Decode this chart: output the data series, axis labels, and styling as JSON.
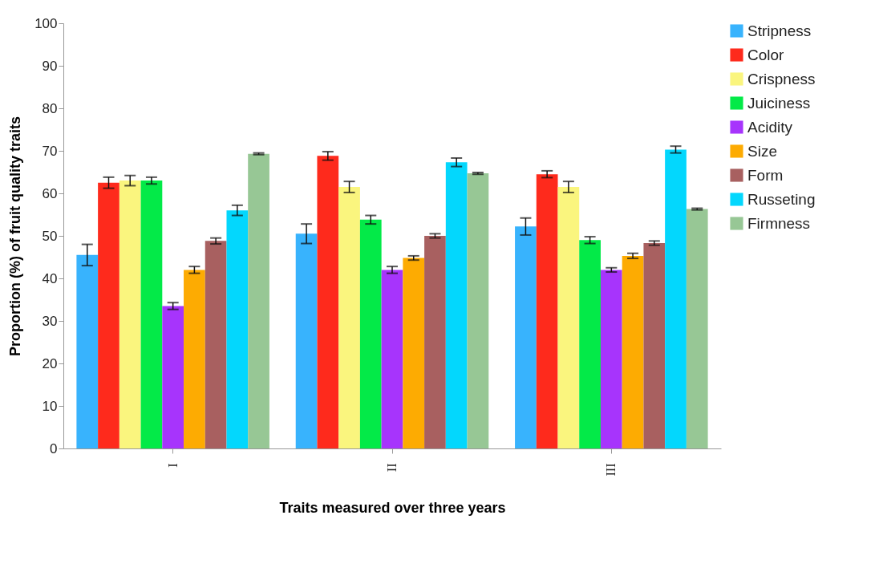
{
  "chart_data": {
    "type": "bar",
    "xlabel": "Traits measured over three years",
    "ylabel": "Proportion (%) of fruit quality traits",
    "categories": [
      "I",
      "II",
      "III"
    ],
    "series": [
      {
        "name": "Stripness",
        "color": "#38b3fd",
        "values": [
          45.5,
          50.5,
          52.2
        ],
        "errors": [
          2.5,
          2.3,
          2
        ]
      },
      {
        "name": "Color",
        "color": "#fe2a1c",
        "values": [
          62.5,
          68.8,
          64.5
        ],
        "errors": [
          1.3,
          1,
          0.8
        ]
      },
      {
        "name": "Crispness",
        "color": "#faf57e",
        "values": [
          63,
          61.5,
          61.5
        ],
        "errors": [
          1.2,
          1.3,
          1.3
        ]
      },
      {
        "name": "Juiciness",
        "color": "#03ea48",
        "values": [
          63,
          53.8,
          49
        ],
        "errors": [
          0.8,
          1,
          0.8
        ]
      },
      {
        "name": "Acidity",
        "color": "#a734fc",
        "values": [
          33.5,
          42,
          42
        ],
        "errors": [
          0.8,
          0.8,
          0.5
        ]
      },
      {
        "name": "Size",
        "color": "#fdab02",
        "values": [
          42,
          44.8,
          45.3
        ],
        "errors": [
          0.8,
          0.5,
          0.6
        ]
      },
      {
        "name": "Form",
        "color": "#a86060",
        "values": [
          48.8,
          50,
          48.3
        ],
        "errors": [
          0.7,
          0.5,
          0.5
        ]
      },
      {
        "name": "Russeting",
        "color": "#03d7fd",
        "values": [
          56,
          67.3,
          70.3
        ],
        "errors": [
          1.2,
          1,
          0.8
        ]
      },
      {
        "name": "Firmness",
        "color": "#97c795",
        "values": [
          69.3,
          64.7,
          56.3
        ],
        "errors": [
          0.2,
          0.2,
          0.2
        ]
      }
    ],
    "ylim": [
      0,
      100
    ],
    "yticks": [
      0,
      10,
      20,
      30,
      40,
      50,
      60,
      70,
      80,
      90,
      100
    ],
    "grid": false,
    "legend": "right"
  }
}
